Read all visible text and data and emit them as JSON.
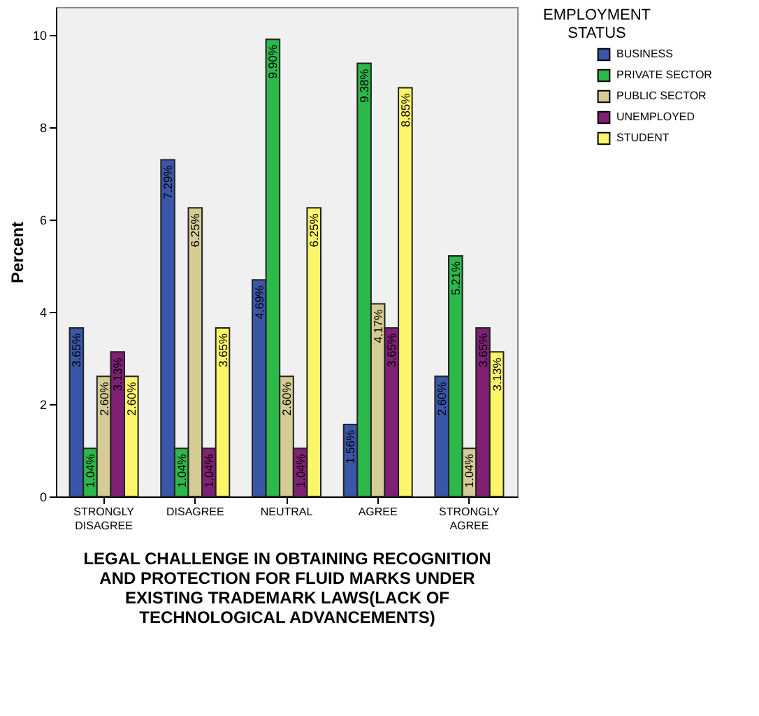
{
  "chart_data": {
    "type": "bar",
    "ylabel": "Percent",
    "xlabel": "LEGAL CHALLENGE IN OBTAINING RECOGNITION AND PROTECTION FOR FLUID MARKS UNDER EXISTING TRADEMARK LAWS(LACK OF TECHNOLOGICAL ADVANCEMENTS)",
    "legend_title": "EMPLOYMENT STATUS",
    "legend": "top right",
    "grid": false,
    "categories": [
      "STRONGLY DISAGREE",
      "DISAGREE",
      "NEUTRAL",
      "AGREE",
      "STRONGLY AGREE"
    ],
    "ylim": [
      0,
      10.6
    ],
    "yticks": [
      0,
      2,
      4,
      6,
      8,
      10
    ],
    "series": [
      {
        "name": "BUSINESS",
        "color": "#3a56a8",
        "values": [
          3.65,
          7.29,
          4.69,
          1.56,
          2.6
        ],
        "value_labels": [
          "3.65%",
          "7.29%",
          "4.69%",
          "1.56%",
          "2.60%"
        ]
      },
      {
        "name": "PRIVATE SECTOR",
        "color": "#2db84a",
        "values": [
          1.04,
          1.04,
          9.9,
          9.38,
          5.21
        ],
        "value_labels": [
          "1.04%",
          "1.04%",
          "9.90%",
          "9.38%",
          "5.21%"
        ]
      },
      {
        "name": "PUBLIC SECTOR",
        "color": "#d4cc94",
        "values": [
          2.6,
          6.25,
          2.6,
          4.17,
          1.04
        ],
        "value_labels": [
          "2.60%",
          "6.25%",
          "2.60%",
          "4.17%",
          "1.04%"
        ]
      },
      {
        "name": "UNEMPLOYED",
        "color": "#7f2075",
        "values": [
          3.13,
          1.04,
          1.04,
          3.65,
          3.65
        ],
        "value_labels": [
          "3.13%",
          "1.04%",
          "1.04%",
          "3.65%",
          "3.65%"
        ]
      },
      {
        "name": "STUDENT",
        "color": "#fbf56a",
        "values": [
          2.6,
          3.65,
          6.25,
          8.85,
          3.13
        ],
        "value_labels": [
          "2.60%",
          "3.65%",
          "6.25%",
          "8.85%",
          "3.13%"
        ]
      }
    ]
  }
}
